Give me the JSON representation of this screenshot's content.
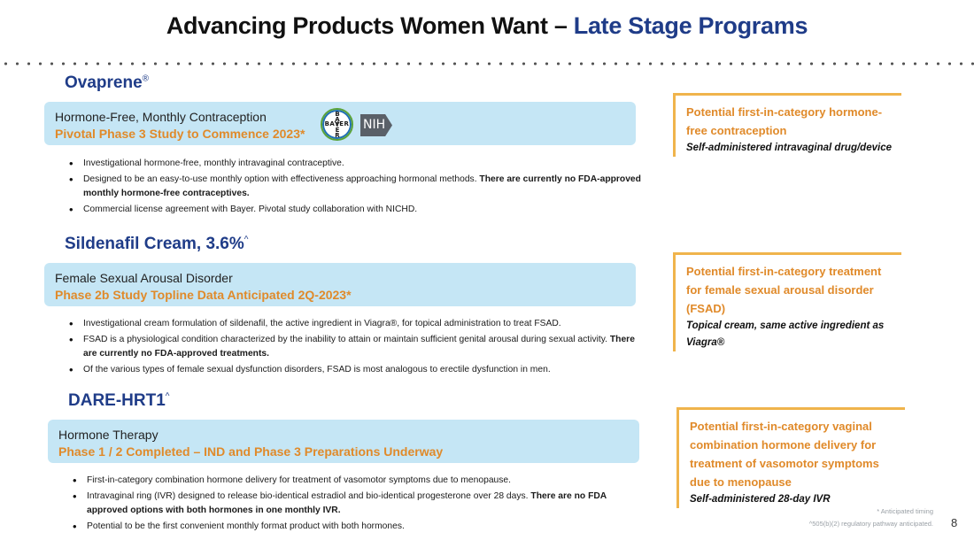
{
  "slide": {
    "title_main": "Advancing Products Women Want – ",
    "title_accent": "Late Stage Programs",
    "page_number": "8"
  },
  "products": [
    {
      "name": "Ovaprene",
      "name_sup": "®",
      "indication": "Hormone-Free, Monthly Contraception",
      "stage": "Pivotal Phase 3 Study to Commence 2023*",
      "bullets": [
        {
          "text": "Investigational hormone-free, monthly intravaginal contraceptive.",
          "bold": ""
        },
        {
          "text": "Designed to be an easy-to-use monthly option with effectiveness approaching hormonal methods. ",
          "bold": "There are currently no FDA-approved monthly hormone-free contraceptives."
        },
        {
          "text": "Commercial license agreement with Bayer.  Pivotal study collaboration with NICHD.",
          "bold": ""
        }
      ],
      "callout_heading": "Potential first-in-category hormone-free contraception",
      "callout_sub": "Self-administered intravaginal drug/device"
    },
    {
      "name": "Sildenafil Cream, 3.6%",
      "name_sup": "^",
      "indication": "Female Sexual Arousal Disorder",
      "stage": "Phase 2b Study Topline Data Anticipated 2Q-2023*",
      "bullets": [
        {
          "text": "Investigational cream formulation of sildenafil, the active ingredient in Viagra®, for topical administration to treat FSAD.",
          "bold": ""
        },
        {
          "text": "FSAD is a physiological condition characterized by the inability to attain or maintain sufficient genital arousal during sexual activity.  ",
          "bold": "There are currently no FDA-approved treatments."
        },
        {
          "text": "Of the various types of female sexual dysfunction disorders, FSAD is most analogous to erectile dysfunction in men.",
          "bold": ""
        }
      ],
      "callout_heading": "Potential first-in-category treatment for female sexual arousal disorder (FSAD)",
      "callout_sub": "Topical cream, same active ingredient as Viagra®"
    },
    {
      "name": "DARE-HRT1",
      "name_sup": "^",
      "indication": "Hormone Therapy",
      "stage": "Phase 1 / 2 Completed – IND and Phase 3 Preparations Underway",
      "bullets": [
        {
          "text": "First-in-category combination hormone delivery for treatment of vasomotor symptoms due to menopause.",
          "bold": ""
        },
        {
          "text": "Intravaginal ring (IVR) designed to release bio-identical estradiol and bio-identical progesterone over 28 days. ",
          "bold": "There are no FDA approved options with both hormones in one monthly IVR."
        },
        {
          "text": "Potential to be the first convenient monthly format product with both hormones.",
          "bold": ""
        }
      ],
      "callout_heading": "Potential first-in-category vaginal combination hormone delivery for treatment of vasomotor symptoms due to menopause",
      "callout_sub": "Self-administered 28-day IVR"
    }
  ],
  "logos": {
    "bayer_text": "BAYER",
    "nih_text": "NIH"
  },
  "footnotes": {
    "line1": "* Anticipated timing",
    "line2": "^505(b)(2) regulatory pathway anticipated."
  },
  "colors": {
    "title_accent": "#1f3c88",
    "product_name": "#1f3c88",
    "stage_orange": "#e08a2a",
    "band_blue": "#c5e6f5",
    "callout_border": "#f0b44c"
  }
}
